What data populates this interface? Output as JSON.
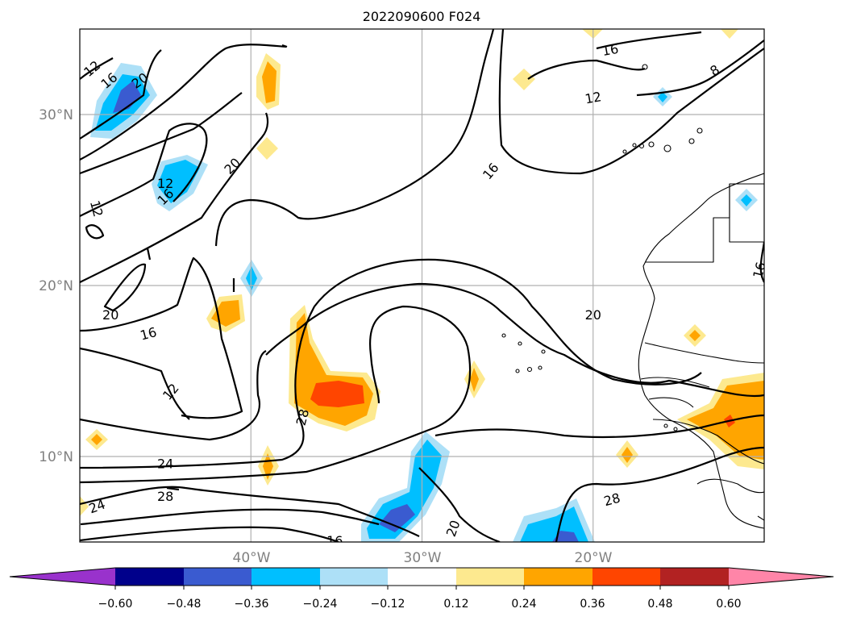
{
  "title": "2022090600 F024",
  "lat_ticks": [
    "30°N",
    "20°N",
    "10°N"
  ],
  "lon_ticks": [
    "40°W",
    "30°W",
    "20°W"
  ],
  "map": {
    "lon_range": [
      -50,
      -10
    ],
    "lat_range": [
      5,
      35
    ],
    "grid": true,
    "projection": "PlateCarree"
  },
  "contour_labels": [
    {
      "text": "12",
      "lon": -49.3,
      "lat": 32.7,
      "rot": -40
    },
    {
      "text": "16",
      "lon": -48.3,
      "lat": 32.0,
      "rot": -40
    },
    {
      "text": "20",
      "lon": -46.5,
      "lat": 32.0,
      "rot": -35
    },
    {
      "text": "20",
      "lon": -41.1,
      "lat": 27.0,
      "rot": -45
    },
    {
      "text": "12",
      "lon": -45.0,
      "lat": 26.0,
      "rot": 0
    },
    {
      "text": "16",
      "lon": -45.0,
      "lat": 25.2,
      "rot": -45
    },
    {
      "text": "12",
      "lon": -49.0,
      "lat": 24.5,
      "rot": 75
    },
    {
      "text": "20",
      "lon": -48.2,
      "lat": 18.3,
      "rot": 0
    },
    {
      "text": "16",
      "lon": -46.0,
      "lat": 17.2,
      "rot": -15
    },
    {
      "text": "12",
      "lon": -44.7,
      "lat": 13.8,
      "rot": -50
    },
    {
      "text": "28",
      "lon": -37.0,
      "lat": 12.3,
      "rot": -75
    },
    {
      "text": "24",
      "lon": -45.0,
      "lat": 9.6,
      "rot": 0
    },
    {
      "text": "28",
      "lon": -45.0,
      "lat": 7.7,
      "rot": 0
    },
    {
      "text": "24",
      "lon": -49.0,
      "lat": 7.1,
      "rot": -20
    },
    {
      "text": "16",
      "lon": -35.1,
      "lat": 5.1,
      "rot": 0
    },
    {
      "text": "20",
      "lon": -28.2,
      "lat": 5.8,
      "rot": -70
    },
    {
      "text": "28",
      "lon": -18.9,
      "lat": 7.5,
      "rot": -15
    },
    {
      "text": "20",
      "lon": -20.0,
      "lat": 18.3,
      "rot": 0
    },
    {
      "text": "16",
      "lon": -26.0,
      "lat": 26.7,
      "rot": -50
    },
    {
      "text": "16",
      "lon": -19.0,
      "lat": 33.8,
      "rot": -10
    },
    {
      "text": "12",
      "lon": -20.0,
      "lat": 31.0,
      "rot": -10
    },
    {
      "text": "8",
      "lon": -12.9,
      "lat": 32.6,
      "rot": -30
    },
    {
      "text": "16",
      "lon": -10.3,
      "lat": 20.9,
      "rot": -75
    }
  ],
  "colorbar": {
    "levels": [
      "−0.60",
      "−0.48",
      "−0.36",
      "−0.24",
      "−0.12",
      "0.12",
      "0.24",
      "0.36",
      "0.48",
      "0.60"
    ],
    "colors": [
      "#9932cc",
      "#00008b",
      "#3a5bd0",
      "#00bfff",
      "#ade0f7",
      "#ffffff",
      "#fde98f",
      "#ffa500",
      "#ff4500",
      "#b22222",
      "#ff85a8"
    ],
    "extend": "both"
  },
  "colors": {
    "grid": "#b0b0b0",
    "contour": "#000000",
    "coast": "#000000"
  }
}
